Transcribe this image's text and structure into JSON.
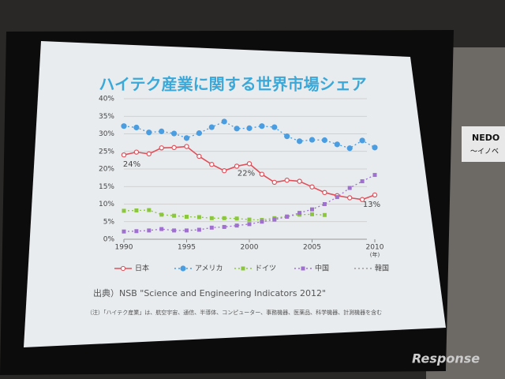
{
  "chart_data": {
    "type": "line",
    "title": "ハイテク産業に関する世界市場シェア",
    "x": [
      1990,
      1991,
      1992,
      1993,
      1994,
      1995,
      1996,
      1997,
      1998,
      1999,
      2000,
      2001,
      2002,
      2003,
      2004,
      2005,
      2006,
      2007,
      2008,
      2009,
      2010
    ],
    "xlim": [
      1990,
      2010
    ],
    "xticks": [
      1990,
      1995,
      2000,
      2005,
      2010
    ],
    "xlabel": "(年)",
    "ylim": [
      0,
      40
    ],
    "yticks": [
      {
        "value": 0,
        "label": "0%"
      },
      {
        "value": 5,
        "label": "5%"
      },
      {
        "value": 10,
        "label": "10%"
      },
      {
        "value": 15,
        "label": "15%"
      },
      {
        "value": 20,
        "label": "20%"
      },
      {
        "value": 25,
        "label": "25%"
      },
      {
        "value": 30,
        "label": "30%"
      },
      {
        "value": 35,
        "label": "35%"
      },
      {
        "value": 40,
        "label": "40%"
      }
    ],
    "grid": true,
    "series": [
      {
        "name": "日本",
        "color": "#e0505a",
        "marker": "open-circle",
        "values": [
          24,
          24.8,
          24.3,
          26,
          26.1,
          26.4,
          23.6,
          21.3,
          19.5,
          20.8,
          21.5,
          18.5,
          16.2,
          16.8,
          16.5,
          14.9,
          13.3,
          12.4,
          11.8,
          11.3,
          12.6
        ],
        "value_labels": [
          "24%",
          null,
          null,
          null,
          null,
          null,
          null,
          null,
          null,
          null,
          "22%",
          null,
          null,
          null,
          null,
          null,
          null,
          null,
          null,
          null,
          "13%"
        ]
      },
      {
        "name": "アメリカ",
        "color": "#4a9de0",
        "marker": "circle",
        "values": [
          32.2,
          31.8,
          30.4,
          30.7,
          30.1,
          28.8,
          30.2,
          31.9,
          33.5,
          31.5,
          31.6,
          32.2,
          31.9,
          29.3,
          27.9,
          28.3,
          28.2,
          27,
          25.9,
          28.1,
          26.1
        ]
      },
      {
        "name": "ドイツ",
        "color": "#8cc63f",
        "marker": "square",
        "values": [
          8.1,
          8.2,
          8.3,
          7,
          6.7,
          6.4,
          6.3,
          6,
          6,
          5.9,
          5.6,
          5.5,
          6,
          6.5,
          7,
          7.1,
          6.9,
          null,
          null,
          null,
          null
        ]
      },
      {
        "name": "中国",
        "color": "#a070d0",
        "marker": "square",
        "values": [
          2.2,
          2.3,
          2.5,
          2.9,
          2.5,
          2.5,
          2.7,
          3.3,
          3.5,
          3.9,
          4.3,
          5,
          5.6,
          6.4,
          7.5,
          8.5,
          10,
          12,
          14.6,
          16.5,
          18.3
        ]
      },
      {
        "name": "韓国",
        "color": "#9a9a9a",
        "marker": "none",
        "values": [
          null,
          null,
          null,
          null,
          null,
          null,
          null,
          null,
          null,
          null,
          null,
          null,
          null,
          null,
          null,
          null,
          null,
          null,
          null,
          null,
          null
        ]
      }
    ],
    "source": "出典）NSB \"Science and Engineering Indicators 2012\"",
    "note": "（注）「ハイテク産業」は、航空宇宙、通信、半導体、コンピューター、事務機器、医薬品、科学機器、計測機器を含む",
    "sign": [
      "NEDO",
      "～イノベ"
    ],
    "watermark": "Response"
  }
}
